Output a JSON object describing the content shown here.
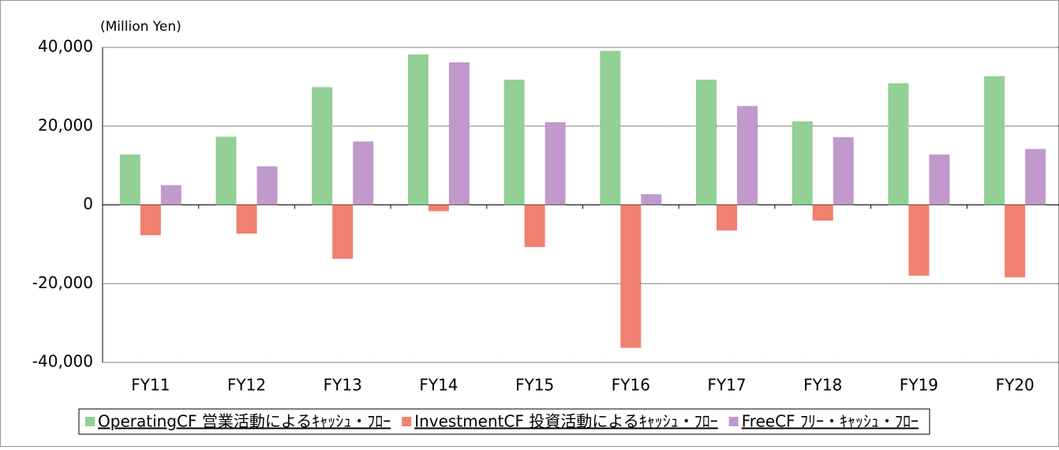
{
  "chart_data": {
    "type": "bar",
    "unit_label": "(Million Yen)",
    "categories": [
      "FY11",
      "FY12",
      "FY13",
      "FY14",
      "FY15",
      "FY16",
      "FY17",
      "FY18",
      "FY19",
      "FY20"
    ],
    "series": [
      {
        "name": "OperatingCF 営業活動によるｷｬｯｼｭ・ﾌﾛｰ",
        "color": "#92d095",
        "values": [
          12800,
          17300,
          29900,
          38200,
          31800,
          39100,
          31800,
          21200,
          30900,
          32700
        ]
      },
      {
        "name": "InvestmentCF 投資活動によるｷｬｯｼｭ・ﾌﾛｰ",
        "color": "#f08070",
        "values": [
          -7700,
          -7300,
          -13700,
          -1600,
          -10700,
          -36300,
          -6500,
          -4000,
          -18000,
          -18400
        ]
      },
      {
        "name": "FreeCF ﾌﾘｰ・ｷｬｯｼｭ・ﾌﾛｰ",
        "color": "#bf9acb",
        "values": [
          5000,
          9800,
          16100,
          36200,
          21000,
          2700,
          25100,
          17200,
          12800,
          14200
        ]
      }
    ],
    "ylim": [
      -40000,
      40000
    ],
    "yticks": [
      {
        "value": -40000,
        "label": "-40,000"
      },
      {
        "value": -20000,
        "label": "-20,000"
      },
      0,
      {
        "value": 20000,
        "label": "20,000"
      },
      {
        "value": 40000,
        "label": "40,000"
      }
    ],
    "grid": true,
    "legend": "bottom"
  }
}
